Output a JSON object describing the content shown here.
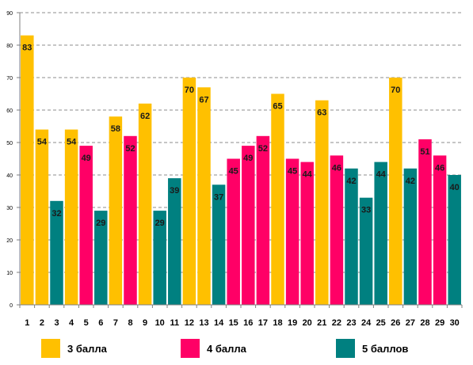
{
  "chart_data": {
    "type": "bar",
    "categories": [
      "1",
      "2",
      "3",
      "4",
      "5",
      "6",
      "7",
      "8",
      "9",
      "10",
      "11",
      "12",
      "13",
      "14",
      "15",
      "16",
      "17",
      "18",
      "19",
      "20",
      "21",
      "22",
      "23",
      "24",
      "25",
      "26",
      "27",
      "28",
      "29",
      "30"
    ],
    "values": [
      83,
      54,
      32,
      54,
      49,
      29,
      58,
      52,
      62,
      29,
      39,
      70,
      67,
      37,
      45,
      49,
      52,
      65,
      45,
      44,
      63,
      46,
      42,
      33,
      44,
      70,
      42,
      51,
      46,
      40
    ],
    "groups": [
      "3",
      "3",
      "5",
      "3",
      "4",
      "5",
      "3",
      "4",
      "3",
      "5",
      "5",
      "3",
      "3",
      "5",
      "4",
      "4",
      "4",
      "3",
      "4",
      "4",
      "3",
      "4",
      "5",
      "5",
      "5",
      "3",
      "5",
      "4",
      "4",
      "5"
    ],
    "ylim": [
      0,
      90
    ],
    "yticks": [
      0,
      10,
      20,
      30,
      40,
      50,
      60,
      70,
      80,
      90
    ],
    "grid": true,
    "legend_position": "bottom",
    "series": [
      {
        "key": "3",
        "name": "3 балла",
        "color": "#FFC000"
      },
      {
        "key": "4",
        "name": "4 балла",
        "color": "#FF0066"
      },
      {
        "key": "5",
        "name": "5 баллов",
        "color": "#008080"
      }
    ]
  }
}
